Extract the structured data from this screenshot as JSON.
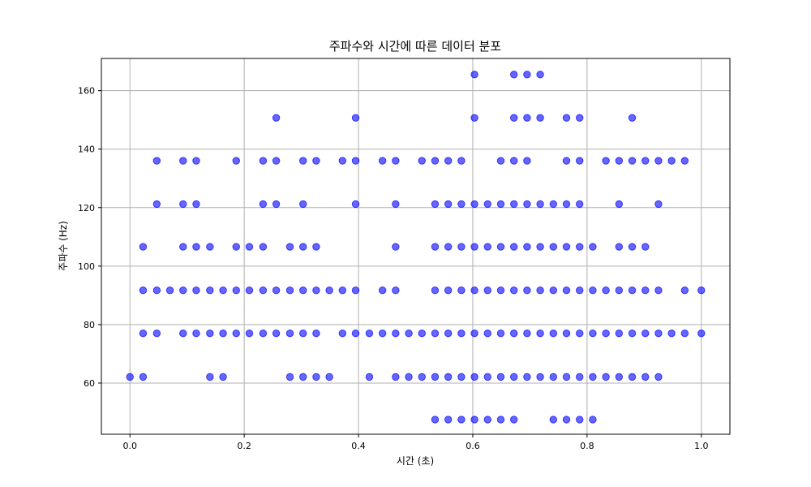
{
  "chart_data": {
    "type": "scatter",
    "title": "주파수와 시간에 따른 데이터 분포",
    "xlabel": "시간 (초)",
    "ylabel": "주파수 (Hz)",
    "xlim": [
      -0.05,
      1.05
    ],
    "ylim": [
      42.5,
      171
    ],
    "xticks": [
      0.0,
      0.2,
      0.4,
      0.6,
      0.8,
      1.0
    ],
    "xtick_labels": [
      "0.0",
      "0.2",
      "0.4",
      "0.6",
      "0.8",
      "1.0"
    ],
    "yticks": [
      60,
      80,
      100,
      120,
      140,
      160
    ],
    "ytick_labels": [
      "60",
      "80",
      "100",
      "120",
      "140",
      "160"
    ],
    "grid": true,
    "marker_color": "#0000ff",
    "rows": [
      {
        "y": 47.5,
        "x": [
          0.534,
          0.557,
          0.58,
          0.603,
          0.626,
          0.649,
          0.672,
          0.741,
          0.764,
          0.787,
          0.81
        ]
      },
      {
        "y": 62.1,
        "x": [
          0.0,
          0.023,
          0.14,
          0.163,
          0.28,
          0.303,
          0.326,
          0.349,
          0.419,
          0.465,
          0.488,
          0.511,
          0.534,
          0.557,
          0.58,
          0.603,
          0.626,
          0.649,
          0.672,
          0.695,
          0.718,
          0.741,
          0.764,
          0.787,
          0.81,
          0.833,
          0.856,
          0.879,
          0.902,
          0.925
        ]
      },
      {
        "y": 77.0,
        "x": [
          0.023,
          0.047,
          0.093,
          0.116,
          0.14,
          0.163,
          0.186,
          0.209,
          0.233,
          0.256,
          0.28,
          0.303,
          0.326,
          0.372,
          0.395,
          0.419,
          0.442,
          0.465,
          0.488,
          0.511,
          0.534,
          0.557,
          0.58,
          0.603,
          0.626,
          0.649,
          0.672,
          0.695,
          0.718,
          0.741,
          0.764,
          0.787,
          0.81,
          0.833,
          0.856,
          0.879,
          0.902,
          0.925,
          0.948,
          0.971,
          1.0
        ]
      },
      {
        "y": 91.7,
        "x": [
          0.023,
          0.047,
          0.07,
          0.093,
          0.116,
          0.14,
          0.163,
          0.186,
          0.209,
          0.233,
          0.256,
          0.28,
          0.303,
          0.326,
          0.349,
          0.372,
          0.395,
          0.442,
          0.465,
          0.534,
          0.557,
          0.58,
          0.603,
          0.626,
          0.649,
          0.672,
          0.695,
          0.718,
          0.741,
          0.764,
          0.787,
          0.81,
          0.833,
          0.856,
          0.879,
          0.902,
          0.925,
          0.971,
          1.0
        ]
      },
      {
        "y": 106.6,
        "x": [
          0.023,
          0.093,
          0.116,
          0.14,
          0.186,
          0.209,
          0.233,
          0.28,
          0.303,
          0.326,
          0.465,
          0.534,
          0.557,
          0.58,
          0.603,
          0.626,
          0.649,
          0.672,
          0.695,
          0.718,
          0.741,
          0.764,
          0.787,
          0.81,
          0.856,
          0.879,
          0.902
        ]
      },
      {
        "y": 121.2,
        "x": [
          0.047,
          0.093,
          0.116,
          0.233,
          0.256,
          0.303,
          0.395,
          0.465,
          0.534,
          0.557,
          0.58,
          0.603,
          0.626,
          0.649,
          0.672,
          0.695,
          0.718,
          0.741,
          0.764,
          0.787,
          0.856,
          0.925
        ]
      },
      {
        "y": 136.0,
        "x": [
          0.047,
          0.093,
          0.116,
          0.186,
          0.233,
          0.256,
          0.303,
          0.326,
          0.372,
          0.395,
          0.442,
          0.465,
          0.511,
          0.534,
          0.557,
          0.58,
          0.649,
          0.672,
          0.695,
          0.764,
          0.787,
          0.833,
          0.856,
          0.879,
          0.902,
          0.925,
          0.948,
          0.971
        ]
      },
      {
        "y": 150.7,
        "x": [
          0.256,
          0.395,
          0.603,
          0.672,
          0.695,
          0.718,
          0.764,
          0.787,
          0.879
        ]
      },
      {
        "y": 165.5,
        "x": [
          0.603,
          0.672,
          0.695,
          0.718
        ]
      }
    ]
  }
}
